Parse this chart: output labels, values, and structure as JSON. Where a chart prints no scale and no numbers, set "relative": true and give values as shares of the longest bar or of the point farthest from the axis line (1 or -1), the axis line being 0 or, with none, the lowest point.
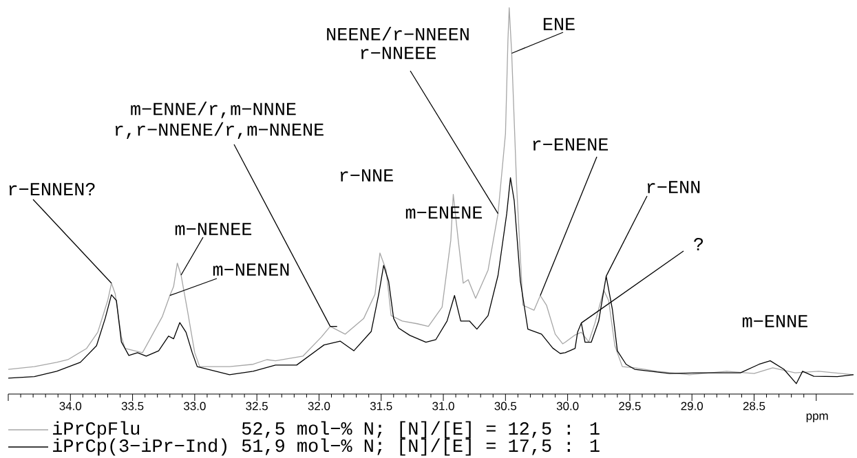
{
  "chart_data": {
    "type": "line",
    "relative": true,
    "xlabel": "ppm",
    "xlim": [
      34.5,
      27.7
    ],
    "xticks": [
      {
        "value": 34.5,
        "label": null
      },
      {
        "value": 34,
        "label": "34.0"
      },
      33.5,
      {
        "value": 33,
        "label": "33.0"
      },
      32.5,
      {
        "value": 32,
        "label": "32.0"
      },
      31.5,
      {
        "value": 31,
        "label": "31.0"
      },
      30.5,
      {
        "value": 30,
        "label": "30.0"
      },
      29.5,
      {
        "value": 29,
        "label": "29.0"
      },
      28.5,
      {
        "value": 28,
        "label": null
      }
    ],
    "legend": "bottom",
    "marker": "none",
    "line_style": "solid",
    "series": [
      {
        "name": "iPrCpFlu",
        "color": "#a6a6a6",
        "x": [
          34.5,
          34.29,
          34.11,
          34.02,
          33.87,
          33.78,
          33.7,
          33.67,
          33.64,
          33.59,
          33.56,
          33.42,
          33.35,
          33.26,
          33.2,
          33.17,
          33.14,
          33.11,
          33.06,
          33.0,
          32.96,
          32.72,
          32.53,
          32.42,
          32.35,
          32.13,
          31.98,
          31.91,
          31.79,
          31.64,
          31.55,
          31.51,
          31.46,
          31.42,
          31.33,
          31.21,
          31.12,
          31.01,
          30.94,
          30.92,
          30.88,
          30.84,
          30.8,
          30.74,
          30.64,
          30.56,
          30.5,
          30.48,
          30.47,
          30.45,
          30.41,
          30.36,
          30.27,
          30.22,
          30.17,
          30.1,
          30.04,
          30.02,
          29.94,
          29.89,
          29.83,
          29.78,
          29.71,
          29.67,
          29.62,
          29.56,
          29.46,
          29.28,
          29.02,
          28.72,
          28.5,
          28.35,
          28.17,
          27.98,
          27.7
        ],
        "values": [
          0.064,
          0.071,
          0.082,
          0.089,
          0.118,
          0.16,
          0.242,
          0.287,
          0.26,
          0.148,
          0.118,
          0.107,
          0.148,
          0.201,
          0.255,
          0.278,
          0.339,
          0.308,
          0.219,
          0.107,
          0.071,
          0.071,
          0.077,
          0.089,
          0.086,
          0.098,
          0.148,
          0.175,
          0.155,
          0.196,
          0.258,
          0.365,
          0.321,
          0.203,
          0.189,
          0.182,
          0.175,
          0.225,
          0.398,
          0.517,
          0.398,
          0.287,
          0.296,
          0.248,
          0.321,
          0.467,
          0.674,
          0.918,
          1.0,
          0.882,
          0.537,
          0.23,
          0.217,
          0.255,
          0.23,
          0.155,
          0.13,
          0.134,
          0.153,
          0.16,
          0.135,
          0.184,
          0.269,
          0.242,
          0.125,
          0.071,
          0.068,
          0.059,
          0.05,
          0.059,
          0.053,
          0.068,
          0.055,
          0.059,
          0.05
        ]
      },
      {
        "name": "iPrCp(3−iPr−Ind)",
        "color": "#000000",
        "x": [
          34.5,
          34.29,
          34.11,
          33.92,
          33.79,
          33.72,
          33.67,
          33.63,
          33.59,
          33.53,
          33.46,
          33.39,
          33.29,
          33.21,
          33.17,
          33.12,
          33.07,
          33.02,
          32.98,
          32.72,
          32.53,
          32.35,
          32.18,
          31.96,
          31.83,
          31.72,
          31.58,
          31.52,
          31.48,
          31.44,
          31.4,
          31.36,
          31.27,
          31.14,
          31.06,
          30.97,
          30.91,
          30.86,
          30.79,
          30.73,
          30.64,
          30.56,
          30.49,
          30.46,
          30.43,
          30.38,
          30.32,
          30.21,
          30.12,
          30.06,
          30.02,
          29.94,
          29.92,
          29.89,
          29.86,
          29.81,
          29.75,
          29.69,
          29.64,
          29.6,
          29.53,
          29.46,
          29.18,
          28.91,
          28.61,
          28.46,
          28.37,
          28.26,
          28.16,
          28.11,
          28.02,
          27.83,
          27.7
        ],
        "values": [
          0.041,
          0.045,
          0.059,
          0.082,
          0.125,
          0.196,
          0.257,
          0.242,
          0.135,
          0.1,
          0.107,
          0.098,
          0.112,
          0.15,
          0.143,
          0.185,
          0.16,
          0.107,
          0.071,
          0.05,
          0.059,
          0.075,
          0.075,
          0.127,
          0.137,
          0.112,
          0.162,
          0.258,
          0.333,
          0.292,
          0.196,
          0.171,
          0.152,
          0.134,
          0.141,
          0.189,
          0.255,
          0.189,
          0.189,
          0.168,
          0.203,
          0.307,
          0.467,
          0.56,
          0.501,
          0.292,
          0.168,
          0.155,
          0.119,
          0.105,
          0.107,
          0.118,
          0.16,
          0.184,
          0.134,
          0.134,
          0.189,
          0.305,
          0.219,
          0.112,
          0.077,
          0.064,
          0.053,
          0.055,
          0.055,
          0.077,
          0.086,
          0.064,
          0.027,
          0.059,
          0.046,
          0.045,
          0.05
        ]
      }
    ],
    "annotations": [
      {
        "text": "r−ENNEN?",
        "x": 33.67,
        "y": 0.287
      },
      {
        "text": "m−NENEE",
        "x": 33.11,
        "y": 0.308
      },
      {
        "text": "m−NENEN",
        "x": 33.2,
        "y": 0.255
      },
      "m−ENNE/r,m−NNNE",
      {
        "text": "r,r−NNENE/r,m−NNENE",
        "x": 31.91,
        "y": 0.175
      },
      "r−NNE",
      "NEENE/r−NNEEN",
      {
        "text": "r−NNEEE",
        "x": 30.56,
        "y": 0.467
      },
      {
        "text": "ENE",
        "x": 30.45,
        "y": 0.882
      },
      "m−ENENE",
      {
        "text": "r−ENENE",
        "x": 30.22,
        "y": 0.255
      },
      {
        "text": "r−ENN",
        "x": 29.69,
        "y": 0.305
      },
      {
        "text": "?",
        "x": 29.89,
        "y": 0.184
      },
      "m−ENNE",
      "52,5 mol−% N; [N]/[E] = 12,5 : 1",
      "51,9 mol−% N; [N]/[E] = 17,5 : 1"
    ]
  }
}
